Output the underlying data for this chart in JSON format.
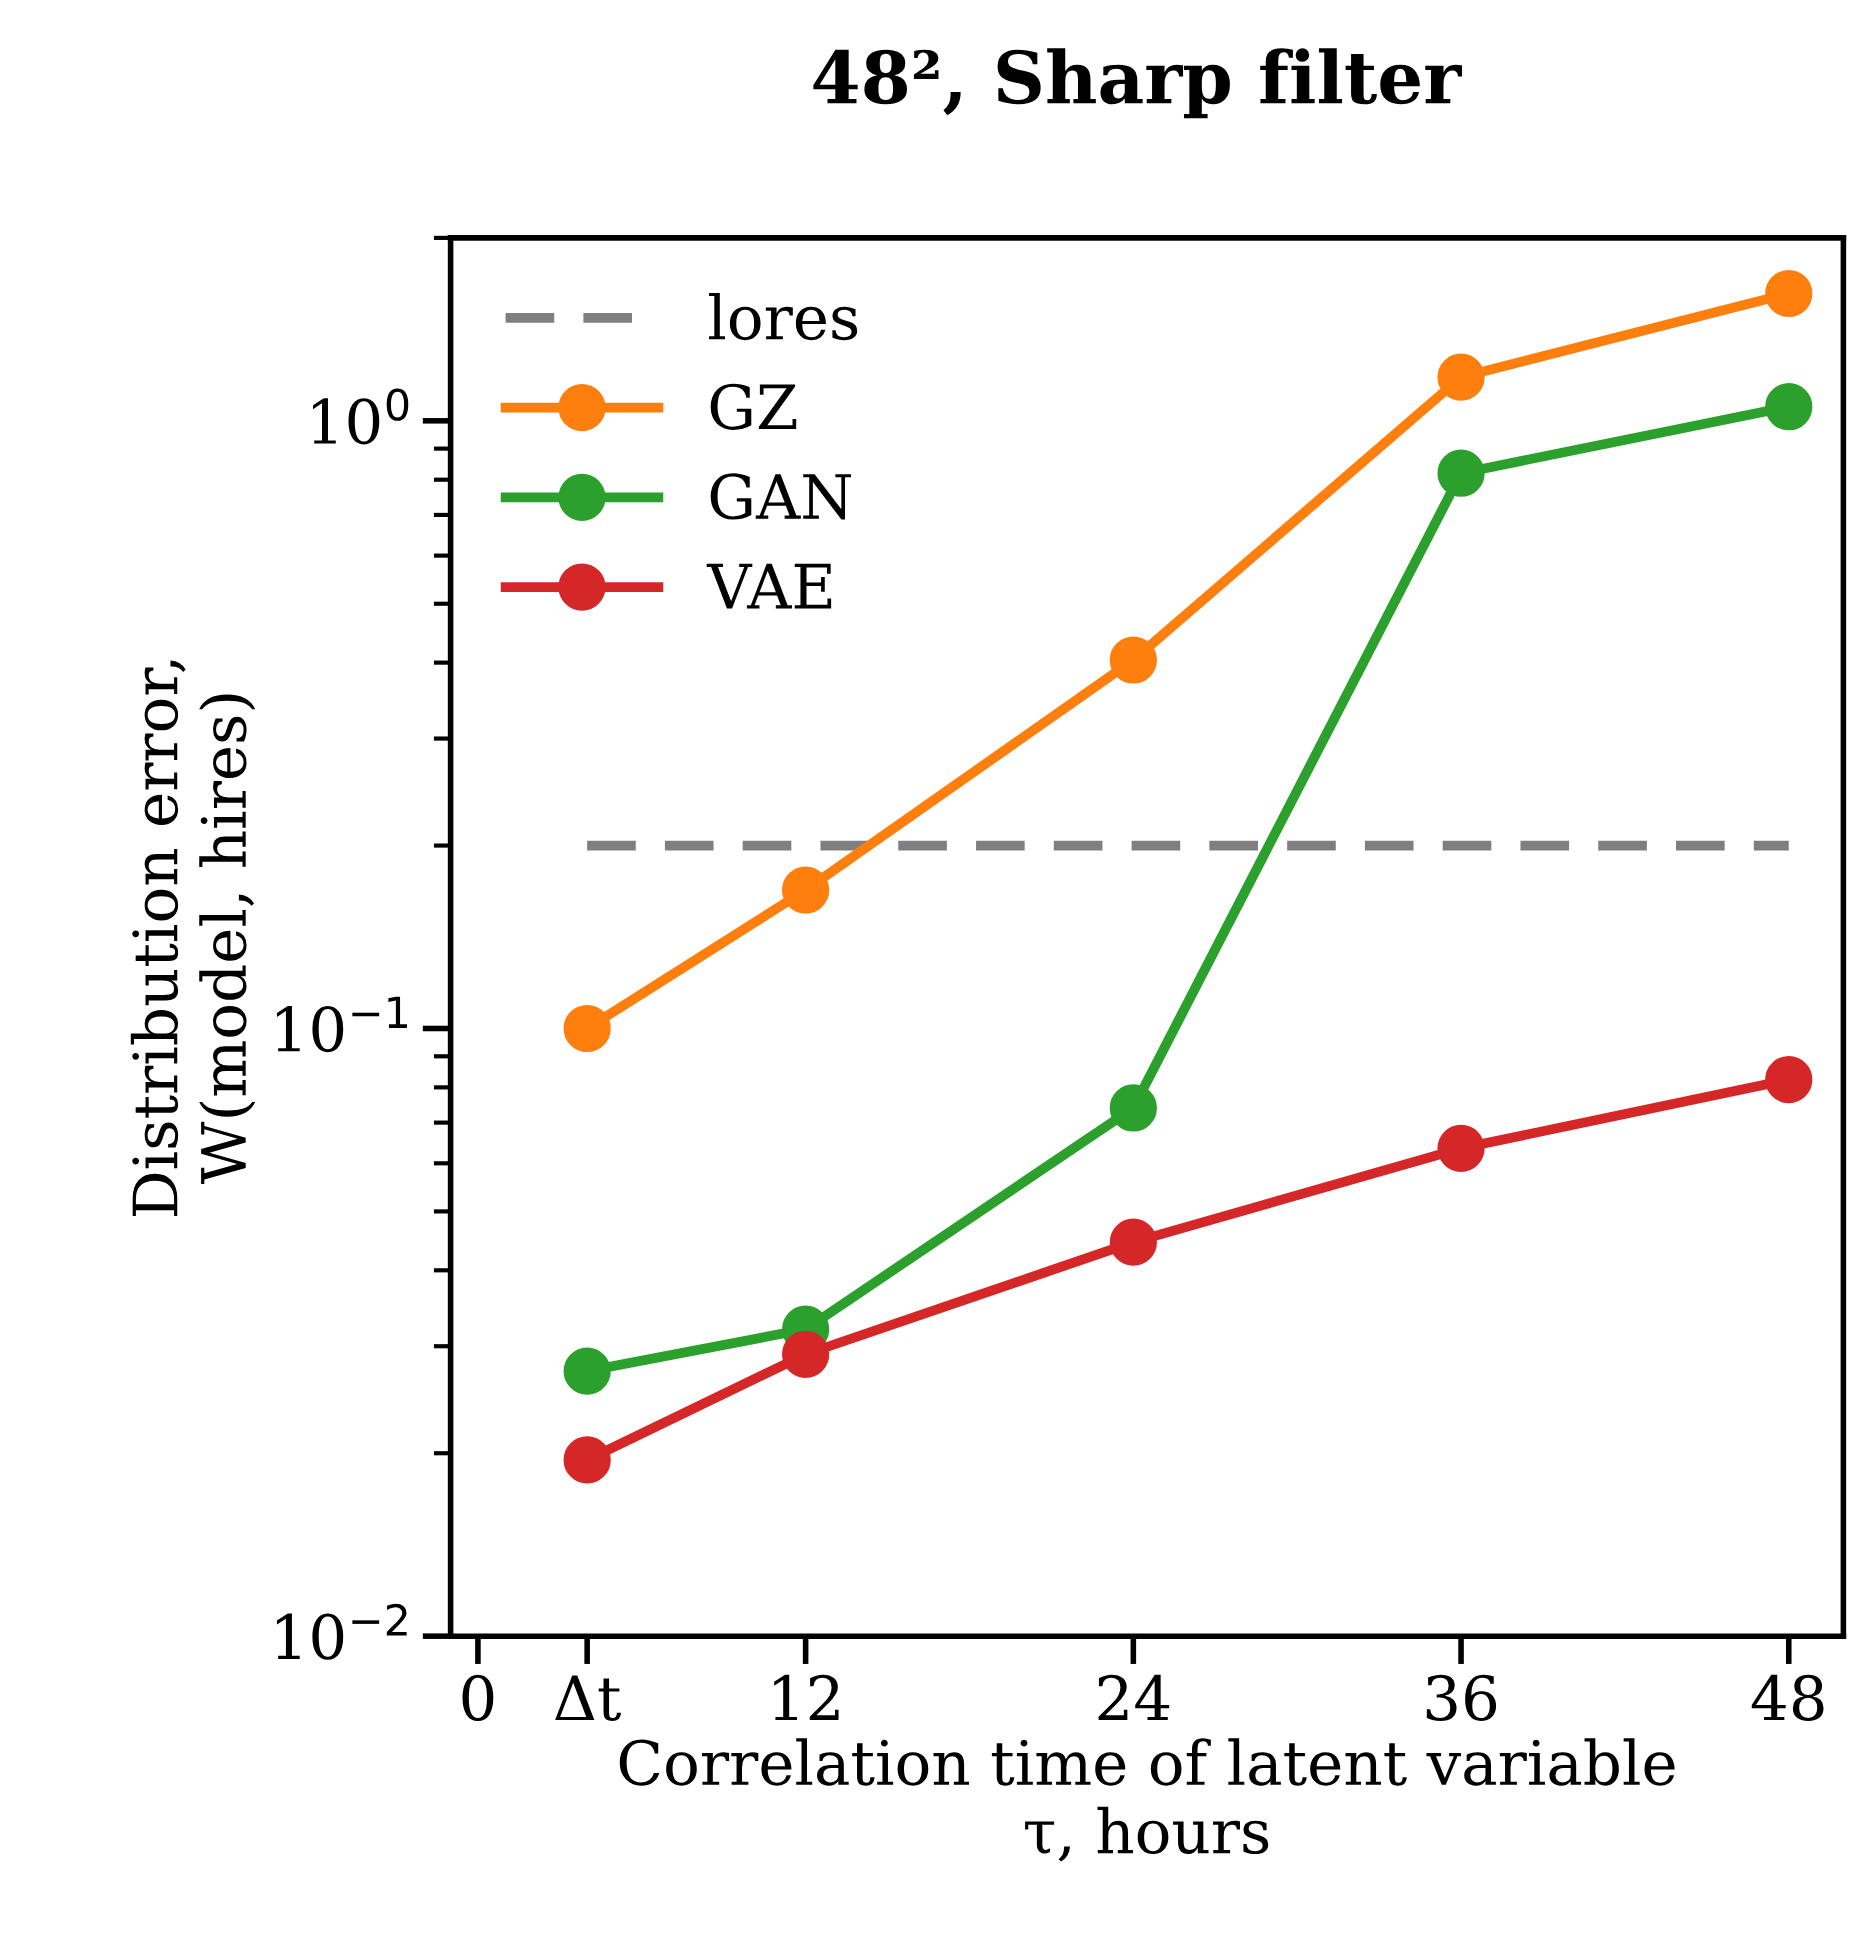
{
  "chart_data": {
    "type": "line",
    "title": "48², Sharp filter",
    "xlabel": "Correlation time of latent variable\nτ, hours",
    "ylabel": "Distribution error,\nW(model, hires)",
    "x": [
      4,
      12,
      24,
      36,
      48
    ],
    "series": [
      {
        "name": "lores",
        "type": "line",
        "x": [
          4,
          48
        ],
        "values": [
          0.2,
          0.2
        ],
        "color": "#7f7f7f",
        "line_style": "dashed",
        "marker": "none"
      },
      {
        "name": "GZ",
        "color": "#ff7f0e",
        "values": [
          0.1,
          0.169,
          0.404,
          1.18,
          1.62
        ]
      },
      {
        "name": "GAN",
        "color": "#2ca02c",
        "values": [
          0.0273,
          0.032,
          0.074,
          0.82,
          1.055
        ]
      },
      {
        "name": "VAE",
        "color": "#d62728",
        "values": [
          0.0195,
          0.0291,
          0.0445,
          0.0635,
          0.0824
        ]
      }
    ],
    "log": "y",
    "xlim": [
      -1,
      50
    ],
    "ylim": [
      0.01,
      2
    ],
    "xticks": [
      0,
      {
        "value": 4,
        "label": "Δt"
      },
      12,
      24,
      36,
      48
    ],
    "yticks": [
      {
        "value": 0.01,
        "label": "10$^{−2}$"
      },
      {
        "value": 0.1,
        "label": "10$^{−1}$"
      },
      {
        "value": 1,
        "label": "10$^{0}$"
      }
    ],
    "marker": "circle",
    "line_style": "solid",
    "grid": false,
    "legend": "top left"
  }
}
